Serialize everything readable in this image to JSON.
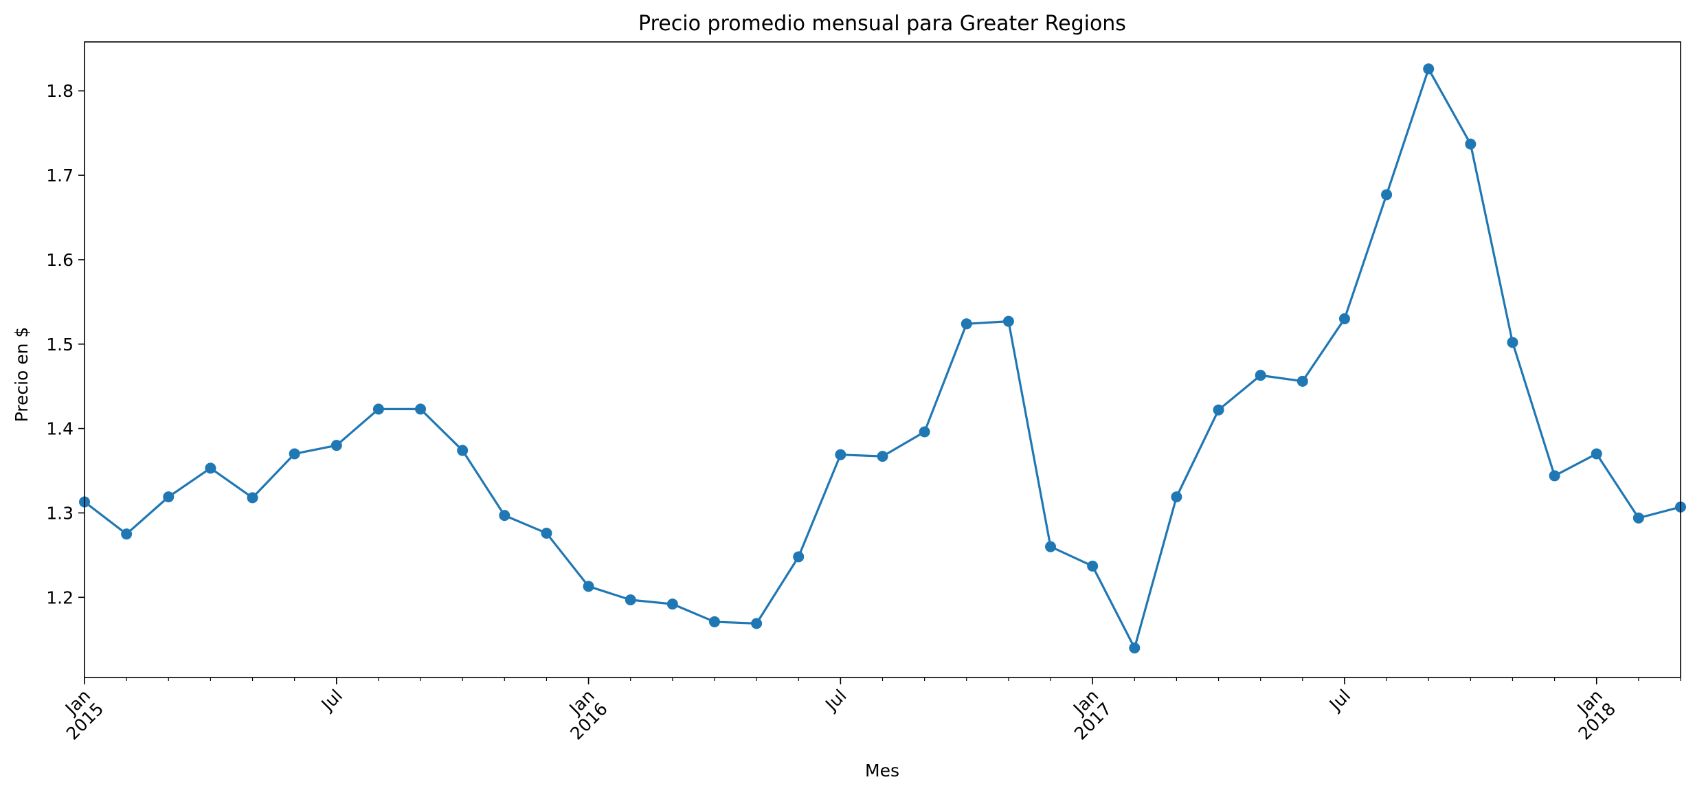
{
  "chart_data": {
    "type": "line",
    "title": "Precio promedio mensual para Greater Regions",
    "xlabel": "Mes",
    "ylabel": "Precio en $",
    "grid": false,
    "legend": "none",
    "x_range": [
      "2015-01",
      "2018-03"
    ],
    "ylim": [
      1.105,
      1.858
    ],
    "y_ticks": [
      1.2,
      1.3,
      1.4,
      1.5,
      1.6,
      1.7,
      1.8
    ],
    "y_tick_labels": [
      "1.2",
      "1.3",
      "1.4",
      "1.5",
      "1.6",
      "1.7",
      "1.8"
    ],
    "x_major_ticks": [
      {
        "x": "2015-01",
        "label": "Jan\n2015"
      },
      {
        "x": "2015-07",
        "label": "Jul"
      },
      {
        "x": "2016-01",
        "label": "Jan\n2016"
      },
      {
        "x": "2016-07",
        "label": "Jul"
      },
      {
        "x": "2017-01",
        "label": "Jan\n2017"
      },
      {
        "x": "2017-07",
        "label": "Jul"
      },
      {
        "x": "2018-01",
        "label": "Jan\n2018"
      }
    ],
    "series": [
      {
        "color": "#1f77b4",
        "marker": "circle",
        "x": [
          "2015-01",
          "2015-02",
          "2015-03",
          "2015-04",
          "2015-05",
          "2015-06",
          "2015-07",
          "2015-08",
          "2015-09",
          "2015-10",
          "2015-11",
          "2015-12",
          "2016-01",
          "2016-02",
          "2016-03",
          "2016-04",
          "2016-05",
          "2016-06",
          "2016-07",
          "2016-08",
          "2016-09",
          "2016-10",
          "2016-11",
          "2016-12",
          "2017-01",
          "2017-02",
          "2017-03",
          "2017-04",
          "2017-05",
          "2017-06",
          "2017-07",
          "2017-08",
          "2017-09",
          "2017-10",
          "2017-11",
          "2017-12",
          "2018-01",
          "2018-02",
          "2018-03"
        ],
        "values": [
          1.313,
          1.275,
          1.319,
          1.353,
          1.318,
          1.37,
          1.38,
          1.423,
          1.423,
          1.374,
          1.297,
          1.276,
          1.213,
          1.197,
          1.192,
          1.171,
          1.169,
          1.248,
          1.369,
          1.367,
          1.396,
          1.524,
          1.527,
          1.26,
          1.237,
          1.14,
          1.319,
          1.422,
          1.463,
          1.456,
          1.53,
          1.677,
          1.826,
          1.737,
          1.502,
          1.344,
          1.37,
          1.294,
          1.307
        ]
      }
    ]
  }
}
